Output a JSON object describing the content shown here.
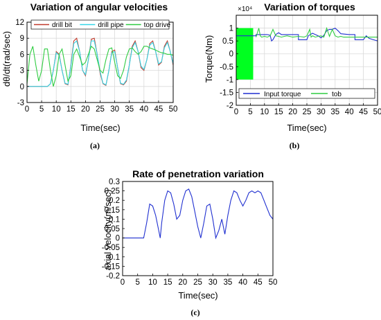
{
  "chart_data": [
    {
      "type": "line",
      "title": "Variation of angular velocities",
      "xlabel": "Time(sec)",
      "ylabel": "dθ/dt(rad/sec)",
      "caption": "(a)",
      "xlim": [
        0,
        50
      ],
      "ylim": [
        -3,
        12
      ],
      "xticks": [
        0,
        5,
        10,
        15,
        20,
        25,
        30,
        35,
        40,
        45,
        50
      ],
      "yticks": [
        -3,
        0,
        3,
        6,
        9,
        12
      ],
      "grid": true,
      "legend": "top",
      "series": [
        {
          "name": "drill bit",
          "color": "#c0392b",
          "x": [
            0,
            7,
            8,
            9,
            10,
            11,
            12,
            13,
            14,
            15,
            16,
            17,
            18,
            19,
            20,
            21,
            22,
            23,
            24,
            25,
            26,
            27,
            28,
            29,
            30,
            31,
            32,
            33,
            34,
            35,
            36,
            37,
            38,
            39,
            40,
            41,
            42,
            43,
            44,
            45,
            46,
            47,
            48,
            49,
            50
          ],
          "y": [
            0,
            0,
            0.5,
            3,
            6.5,
            6,
            3,
            0.5,
            0.3,
            4,
            8.5,
            9,
            6.5,
            3,
            2,
            5,
            8.8,
            9,
            6,
            2.5,
            0.5,
            0.2,
            3,
            6.5,
            6.8,
            3.5,
            0.5,
            0.3,
            1,
            4,
            7.5,
            8.5,
            6.5,
            3.5,
            3,
            5,
            8,
            8.5,
            6.5,
            4,
            4.5,
            7.5,
            8.5,
            6.5,
            4
          ]
        },
        {
          "name": "drill pipe",
          "color": "#33d6e8",
          "x": [
            0,
            7,
            8,
            9,
            10,
            11,
            12,
            13,
            14,
            15,
            16,
            17,
            18,
            19,
            20,
            21,
            22,
            23,
            24,
            25,
            26,
            27,
            28,
            29,
            30,
            31,
            32,
            33,
            34,
            35,
            36,
            37,
            38,
            39,
            40,
            41,
            42,
            43,
            44,
            45,
            46,
            47,
            48,
            49,
            50
          ],
          "y": [
            0,
            0,
            0.5,
            3,
            6.3,
            5.8,
            3,
            0.6,
            0.4,
            3.8,
            8,
            8.5,
            6.5,
            3,
            2.2,
            5,
            8.5,
            8.5,
            6,
            2.8,
            0.6,
            0.3,
            3,
            6.3,
            6.5,
            3.5,
            0.6,
            0.4,
            1.2,
            4,
            7.2,
            8.2,
            6.5,
            3.8,
            3.2,
            5,
            7.7,
            8.2,
            6.5,
            4.2,
            4.6,
            7.2,
            8.2,
            6.5,
            4.2
          ]
        },
        {
          "name": "top drive",
          "color": "#2ecc40",
          "x": [
            0,
            1,
            2,
            3,
            4,
            5,
            6,
            7,
            8,
            9,
            10,
            11,
            12,
            13,
            14,
            15,
            16,
            17,
            18,
            19,
            20,
            21,
            22,
            23,
            24,
            25,
            26,
            27,
            28,
            29,
            30,
            31,
            32,
            33,
            34,
            35,
            36,
            37,
            38,
            39,
            40,
            41,
            42,
            43,
            44,
            45,
            46,
            47,
            48,
            49,
            50
          ],
          "y": [
            0.5,
            6,
            7.5,
            4,
            1,
            3,
            7,
            7,
            3,
            0,
            2,
            6,
            7,
            4,
            1,
            2,
            6,
            7,
            5.5,
            4,
            4.5,
            6,
            7.5,
            7,
            5,
            3,
            2.5,
            5,
            7,
            7.2,
            4.5,
            2,
            1.5,
            3,
            5.5,
            7,
            7.2,
            6.5,
            6,
            6.5,
            7.5,
            7.5,
            7.2,
            7,
            6.8,
            6.5,
            6.3,
            6.2,
            6,
            6,
            5.8
          ]
        }
      ]
    },
    {
      "type": "line",
      "title": "Variation of torques",
      "xlabel": "Time(sec)",
      "ylabel": "Torque(Nm)",
      "multiplier": "×10⁴",
      "caption": "(b)",
      "xlim": [
        0,
        50
      ],
      "ylim": [
        -2,
        1.5
      ],
      "xticks": [
        0,
        5,
        10,
        15,
        20,
        25,
        30,
        35,
        40,
        45,
        50
      ],
      "yticks": [
        -2,
        -1.5,
        -1,
        -0.5,
        0,
        0.5,
        1
      ],
      "grid": true,
      "legend": "bottom",
      "series": [
        {
          "name": "Input torque",
          "color": "#1f2fd0",
          "x": [
            0,
            7,
            7,
            8,
            9,
            10,
            11,
            12,
            12.5,
            13,
            14,
            15,
            16,
            18,
            20,
            22,
            22,
            25,
            25.5,
            27,
            28,
            29,
            30,
            31,
            32,
            33,
            34,
            35,
            36,
            37,
            40,
            42,
            42,
            45,
            46,
            47,
            50
          ],
          "y": [
            0.7,
            0.7,
            0.75,
            0.75,
            0.75,
            0.75,
            0.75,
            0.72,
            0.5,
            0.55,
            0.75,
            0.82,
            0.75,
            0.75,
            0.75,
            0.75,
            0.55,
            0.55,
            0.7,
            0.8,
            0.75,
            0.7,
            0.62,
            0.72,
            0.9,
            0.95,
            0.95,
            1.0,
            0.9,
            0.78,
            0.75,
            0.75,
            0.55,
            0.55,
            0.7,
            0.6,
            0.5
          ]
        },
        {
          "name": "tob",
          "color": "#2ecc40",
          "x": [
            7,
            8,
            8.5,
            9,
            10,
            11,
            12,
            13,
            14,
            15,
            16,
            17,
            18,
            20,
            22,
            24,
            25,
            26,
            26.5,
            27,
            28,
            29,
            30,
            31,
            32,
            33,
            34,
            35,
            36,
            37,
            38,
            40,
            42,
            44,
            46,
            48,
            50
          ],
          "y": [
            0.65,
            1.0,
            0.7,
            0.65,
            0.68,
            0.65,
            0.7,
            0.95,
            0.7,
            0.68,
            0.65,
            0.68,
            0.7,
            0.65,
            0.68,
            0.65,
            0.7,
            0.95,
            0.65,
            0.7,
            0.65,
            0.68,
            0.7,
            0.65,
            1.0,
            0.68,
            0.95,
            0.7,
            0.65,
            0.68,
            0.65,
            0.65,
            0.65,
            0.65,
            0.65,
            0.65,
            0.65
          ]
        }
      ],
      "filled_region": {
        "color": "#00ff20",
        "x": [
          0,
          6
        ],
        "y": [
          -1,
          1
        ]
      }
    },
    {
      "type": "line",
      "title": "Rate of penetration variation",
      "xlabel": "Time(sec)",
      "ylabel": "axial velocity(m/sec)",
      "caption": "(c)",
      "xlim": [
        0,
        50
      ],
      "ylim": [
        -0.2,
        0.3
      ],
      "xticks": [
        0,
        5,
        10,
        15,
        20,
        25,
        30,
        35,
        40,
        45,
        50
      ],
      "yticks": [
        -0.2,
        -0.15,
        -0.1,
        -0.05,
        0,
        0.05,
        0.1,
        0.15,
        0.2,
        0.25,
        0.3
      ],
      "grid": false,
      "series": [
        {
          "name": "",
          "color": "#1f2fd0",
          "x": [
            0,
            7,
            8,
            9,
            10,
            11,
            12,
            12.5,
            13,
            14,
            15,
            16,
            17,
            18,
            19,
            20,
            21,
            22,
            23,
            24,
            25,
            26,
            27,
            28,
            29,
            30,
            31,
            32,
            33,
            34,
            35,
            36,
            37,
            38,
            39,
            40,
            41,
            42,
            43,
            44,
            45,
            46,
            47,
            48,
            49,
            50
          ],
          "y": [
            0,
            0,
            0.08,
            0.18,
            0.17,
            0.12,
            0.04,
            0.0,
            0.08,
            0.2,
            0.25,
            0.24,
            0.18,
            0.1,
            0.12,
            0.2,
            0.25,
            0.26,
            0.22,
            0.14,
            0.06,
            0.0,
            0.08,
            0.17,
            0.18,
            0.1,
            0.0,
            0.04,
            0.1,
            0.02,
            0.12,
            0.2,
            0.25,
            0.24,
            0.2,
            0.17,
            0.2,
            0.24,
            0.25,
            0.24,
            0.25,
            0.24,
            0.2,
            0.16,
            0.12,
            0.1
          ]
        }
      ]
    }
  ]
}
